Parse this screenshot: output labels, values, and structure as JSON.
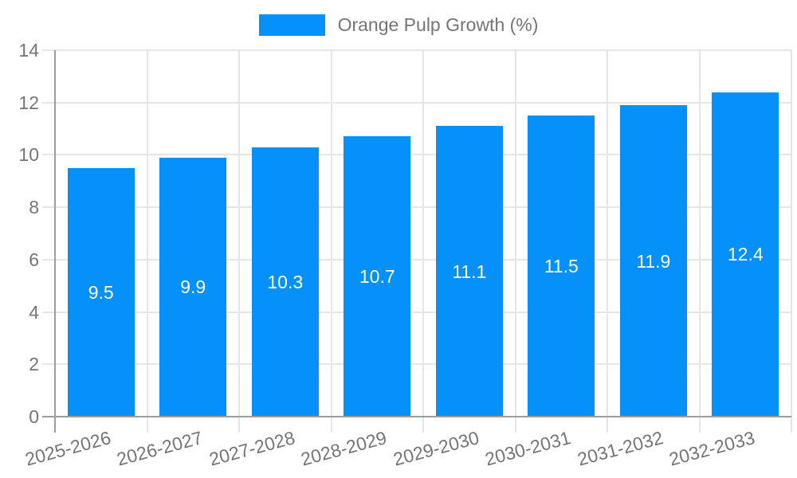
{
  "legend": {
    "label": "Orange Pulp Growth (%)"
  },
  "chart_data": {
    "type": "bar",
    "title": "",
    "categories": [
      "2025-2026",
      "2026-2027",
      "2027-2028",
      "2028-2029",
      "2029-2030",
      "2030-2031",
      "2031-2032",
      "2032-2033"
    ],
    "series": [
      {
        "name": "Orange Pulp Growth (%)",
        "values": [
          9.5,
          9.9,
          10.3,
          10.7,
          11.1,
          11.5,
          11.9,
          12.4
        ]
      }
    ],
    "data_labels": [
      "9.5",
      "9.9",
      "10.3",
      "10.7",
      "11.1",
      "11.5",
      "11.9",
      "12.4"
    ],
    "xlabel": "",
    "ylabel": "",
    "ylim": [
      0,
      14
    ],
    "y_ticks": [
      0,
      2,
      4,
      6,
      8,
      10,
      12,
      14
    ],
    "grid": true,
    "legend_position": "top",
    "x_label_rotation_deg": -15,
    "colors": {
      "bar": "#0690FA",
      "bar_value_label": "#ffffff",
      "axis_text": "#757575",
      "gridline": "#e6e6e6",
      "axis_line": "#9e9e9e",
      "background": "#ffffff"
    }
  }
}
